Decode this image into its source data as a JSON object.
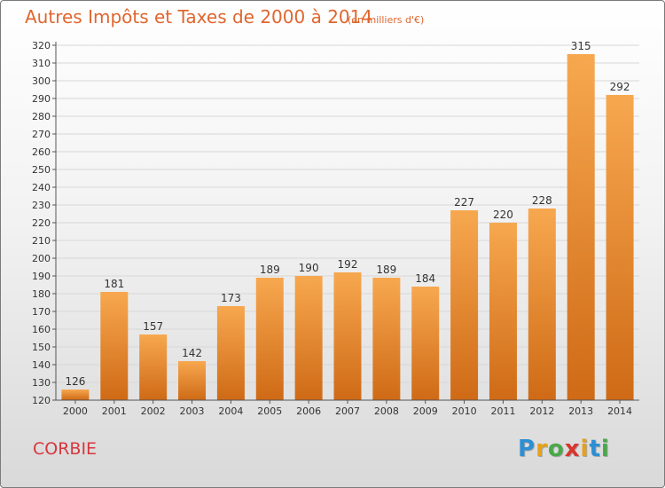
{
  "header": {
    "title": "Autres Impôts et Taxes de 2000 à 2014",
    "unit": "(en milliers d'€)"
  },
  "footer": {
    "commune": "CORBIE",
    "logo_text": "Proxiti"
  },
  "colors": {
    "title": "#e0662f",
    "commune": "#d6373f",
    "bar_light": "#f7a84f",
    "bar_dark": "#cf6a16",
    "gridline": "#d7d7d7"
  },
  "chart_data": {
    "type": "bar",
    "title": "Autres Impôts et Taxes de 2000 à 2014",
    "subtitle": "(en milliers d'€)",
    "xlabel": "",
    "ylabel": "",
    "categories": [
      "2000",
      "2001",
      "2002",
      "2003",
      "2004",
      "2005",
      "2006",
      "2007",
      "2008",
      "2009",
      "2010",
      "2011",
      "2012",
      "2013",
      "2014"
    ],
    "values": [
      126,
      181,
      157,
      142,
      173,
      189,
      190,
      192,
      189,
      184,
      227,
      220,
      228,
      315,
      292
    ],
    "ylim": [
      120,
      320
    ],
    "ytick_step": 10,
    "grid": true,
    "data_labels": true
  }
}
